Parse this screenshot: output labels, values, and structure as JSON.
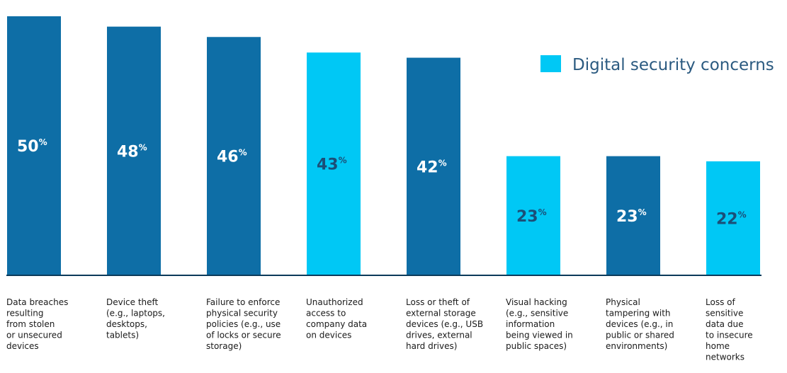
{
  "chart_data": {
    "type": "bar",
    "categories": [
      [
        "Data breaches",
        "resulting",
        "from stolen",
        "or unsecured",
        "devices"
      ],
      [
        "Device theft",
        "(e.g., laptops,",
        "desktops,",
        "tablets)"
      ],
      [
        "Failure to enforce",
        "physical security",
        "policies (e.g., use",
        "of locks or secure",
        "storage)"
      ],
      [
        "Unauthorized",
        "access to",
        "company data",
        "on devices"
      ],
      [
        "Loss or theft of",
        "external storage",
        "devices (e.g., USB",
        "drives, external",
        "hard drives)"
      ],
      [
        "Visual hacking",
        "(e.g., sensitive",
        "information",
        "being viewed in",
        "public spaces)"
      ],
      [
        "Physical",
        "tampering with",
        "devices (e.g., in",
        "public or shared",
        "environments)"
      ],
      [
        "Loss of",
        "sensitive",
        "data due",
        "to insecure",
        "home",
        "networks"
      ]
    ],
    "values": [
      50,
      48,
      46,
      43,
      42,
      23,
      23,
      22
    ],
    "data_labels": [
      "50",
      "48",
      "46",
      "43",
      "42",
      "23",
      "23",
      "22"
    ],
    "unit_suffix": "%",
    "highlight": [
      false,
      false,
      false,
      true,
      false,
      true,
      false,
      true
    ],
    "colors": {
      "default": "#0e6ea6",
      "highlight": "#00c8f5",
      "default_label": "#ffffff",
      "highlight_label": "#1b4f78",
      "baseline": "#0b3a5a"
    },
    "legend": {
      "placement": "top-right",
      "entries": [
        {
          "label": "Digital security concerns",
          "color": "#00c8f5"
        }
      ]
    },
    "ylim": [
      0,
      51.5
    ],
    "grid": false,
    "title": "",
    "xlabel": "",
    "ylabel": ""
  }
}
